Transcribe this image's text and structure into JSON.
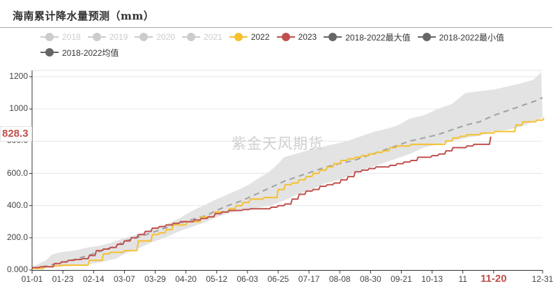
{
  "title": "海南累计降水量预测（mm）",
  "watermark": "紫金天风期货",
  "legend": [
    {
      "label": "2018",
      "color": "#cccccc",
      "active": false
    },
    {
      "label": "2019",
      "color": "#cccccc",
      "active": false
    },
    {
      "label": "2020",
      "color": "#cccccc",
      "active": false
    },
    {
      "label": "2021",
      "color": "#cccccc",
      "active": false
    },
    {
      "label": "2022",
      "color": "#f5c02e",
      "active": true
    },
    {
      "label": "2023",
      "color": "#c0504d",
      "active": true
    },
    {
      "label": "2018-2022最大值",
      "color": "#666666",
      "active": true
    },
    {
      "label": "2018-2022最小值",
      "color": "#666666",
      "active": true
    },
    {
      "label": "2018-2022均值",
      "color": "#666666",
      "active": true
    }
  ],
  "colors": {
    "y2022": "#f5c02e",
    "y2023": "#c0504d",
    "band": "#e3e3e3",
    "mean": "#a0a0a0",
    "grid": "#e6e6e6",
    "axis": "#333333"
  },
  "axis_marker": {
    "label": "828.3",
    "x_highlight": "11-20"
  },
  "chart_data": {
    "type": "line",
    "title": "海南累计降水量预测（mm）",
    "xlabel": "",
    "ylabel": "",
    "ylim": [
      0,
      1200
    ],
    "yticks": [
      "0.000",
      "200.0",
      "400.0",
      "600.0",
      "800.0",
      "1000",
      "1200"
    ],
    "ytick_values": [
      0,
      200,
      400,
      600,
      800,
      1000,
      1200
    ],
    "xticks": [
      "01-01",
      "01-23",
      "02-14",
      "03-07",
      "03-29",
      "04-20",
      "05-12",
      "06-03",
      "06-25",
      "07-17",
      "08-08",
      "08-30",
      "09-21",
      "10-13",
      "11",
      "11-20",
      "12-31"
    ],
    "xtick_days": [
      0,
      22,
      44,
      66,
      88,
      110,
      132,
      154,
      176,
      198,
      220,
      242,
      264,
      286,
      308,
      330,
      365
    ],
    "grid": true,
    "legend_position": "top",
    "x_unit": "day_of_year",
    "series": [
      {
        "name": "2018-2022最大值",
        "type": "band_upper",
        "x": [
          0,
          5,
          10,
          14,
          20,
          30,
          40,
          48,
          55,
          60,
          66,
          75,
          85,
          95,
          105,
          115,
          125,
          132,
          140,
          148,
          155,
          160,
          168,
          175,
          180,
          188,
          196,
          205,
          215,
          225,
          235,
          245,
          255,
          262,
          270,
          280,
          290,
          300,
          310,
          320,
          330,
          340,
          350,
          358,
          362,
          365
        ],
        "values": [
          15,
          40,
          60,
          95,
          110,
          120,
          140,
          150,
          165,
          180,
          200,
          220,
          250,
          280,
          320,
          370,
          410,
          440,
          470,
          500,
          530,
          560,
          600,
          650,
          700,
          720,
          740,
          760,
          780,
          800,
          830,
          860,
          880,
          900,
          940,
          960,
          1000,
          1030,
          1100,
          1110,
          1120,
          1140,
          1160,
          1180,
          1210,
          1240
        ]
      },
      {
        "name": "2018-2022最小值",
        "type": "band_lower",
        "x": [
          0,
          10,
          20,
          30,
          40,
          50,
          60,
          66,
          75,
          85,
          95,
          105,
          115,
          125,
          132,
          140,
          150,
          160,
          170,
          180,
          190,
          200,
          210,
          220,
          230,
          240,
          250,
          260,
          270,
          280,
          290,
          300,
          310,
          318,
          325,
          330,
          340,
          350,
          358,
          365
        ],
        "values": [
          5,
          15,
          20,
          25,
          35,
          50,
          70,
          100,
          130,
          170,
          200,
          240,
          270,
          300,
          330,
          350,
          370,
          385,
          400,
          430,
          470,
          500,
          540,
          560,
          600,
          630,
          660,
          690,
          720,
          760,
          780,
          800,
          820,
          830,
          845,
          860,
          870,
          890,
          920,
          945
        ]
      },
      {
        "name": "2018-2022均值",
        "type": "dashed",
        "x": [
          0,
          10,
          20,
          30,
          40,
          50,
          60,
          66,
          75,
          85,
          95,
          105,
          115,
          125,
          132,
          140,
          150,
          160,
          170,
          180,
          190,
          200,
          210,
          220,
          230,
          240,
          250,
          260,
          270,
          280,
          290,
          300,
          310,
          320,
          330,
          340,
          350,
          360,
          365
        ],
        "values": [
          10,
          25,
          45,
          65,
          90,
          120,
          150,
          180,
          200,
          230,
          260,
          290,
          315,
          340,
          370,
          400,
          430,
          470,
          510,
          550,
          580,
          610,
          640,
          660,
          680,
          710,
          740,
          770,
          800,
          820,
          840,
          870,
          900,
          920,
          960,
          990,
          1020,
          1050,
          1070
        ]
      },
      {
        "name": "2022",
        "type": "line",
        "x": [
          0,
          8,
          15,
          20,
          30,
          40,
          45,
          50,
          55,
          60,
          65,
          70,
          75,
          80,
          85,
          90,
          95,
          100,
          105,
          110,
          115,
          120,
          125,
          130,
          135,
          140,
          145,
          150,
          155,
          160,
          165,
          170,
          175,
          180,
          185,
          190,
          195,
          200,
          205,
          210,
          215,
          220,
          225,
          230,
          235,
          240,
          245,
          250,
          255,
          260,
          270,
          280,
          290,
          295,
          300,
          305,
          310,
          320,
          330,
          340,
          345,
          350,
          360,
          365
        ],
        "values": [
          10,
          20,
          25,
          30,
          30,
          60,
          60,
          100,
          110,
          110,
          120,
          120,
          180,
          180,
          220,
          230,
          250,
          280,
          280,
          300,
          300,
          330,
          330,
          360,
          360,
          380,
          400,
          420,
          440,
          440,
          450,
          450,
          500,
          530,
          540,
          560,
          580,
          600,
          620,
          640,
          660,
          680,
          690,
          700,
          710,
          720,
          730,
          740,
          760,
          770,
          780,
          780,
          780,
          800,
          820,
          830,
          840,
          850,
          860,
          860,
          900,
          920,
          930,
          945
        ]
      },
      {
        "name": "2023",
        "type": "line",
        "x": [
          0,
          5,
          10,
          15,
          20,
          25,
          30,
          35,
          40,
          45,
          50,
          55,
          60,
          65,
          70,
          75,
          80,
          85,
          90,
          95,
          100,
          105,
          110,
          115,
          120,
          125,
          130,
          135,
          140,
          145,
          150,
          155,
          160,
          165,
          170,
          175,
          180,
          185,
          190,
          195,
          200,
          205,
          210,
          215,
          220,
          225,
          230,
          235,
          240,
          245,
          250,
          255,
          260,
          265,
          270,
          275,
          280,
          285,
          290,
          295,
          300,
          305,
          310,
          315,
          320,
          325,
          327
        ],
        "values": [
          15,
          20,
          20,
          40,
          50,
          60,
          65,
          70,
          90,
          120,
          130,
          140,
          160,
          180,
          200,
          220,
          240,
          260,
          270,
          280,
          290,
          300,
          300,
          310,
          320,
          330,
          350,
          360,
          370,
          370,
          375,
          380,
          380,
          380,
          390,
          400,
          410,
          440,
          470,
          490,
          500,
          520,
          530,
          540,
          560,
          580,
          610,
          620,
          630,
          640,
          640,
          650,
          660,
          670,
          680,
          700,
          700,
          710,
          720,
          740,
          760,
          760,
          770,
          780,
          780,
          780,
          828.3
        ]
      }
    ]
  }
}
